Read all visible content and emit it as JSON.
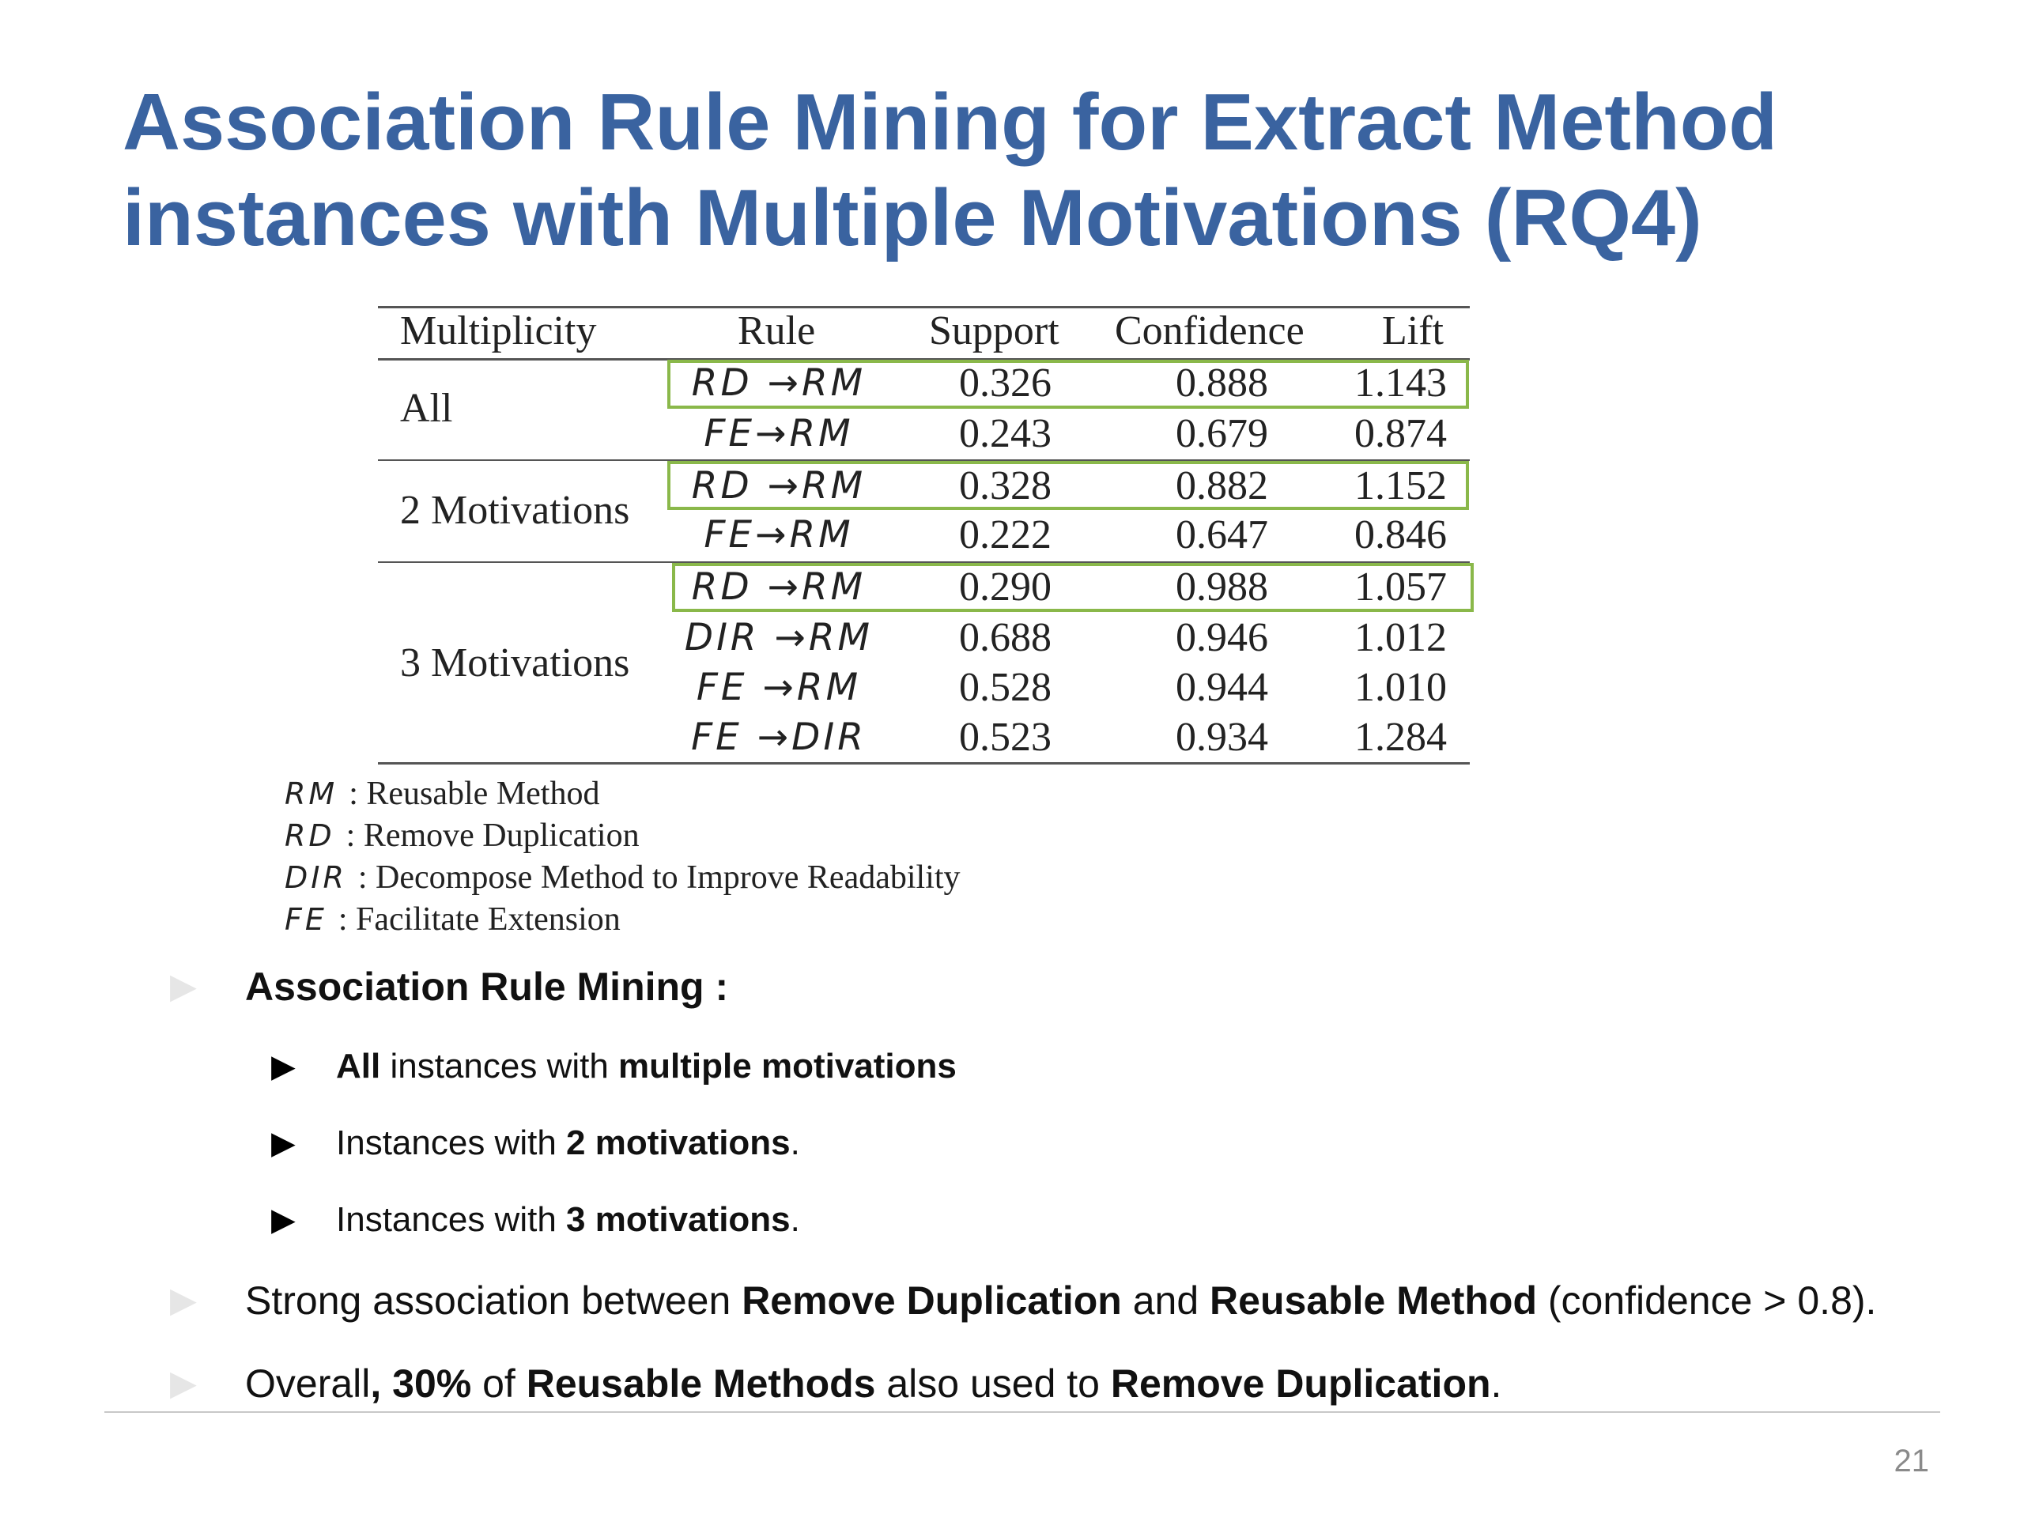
{
  "title": {
    "line1": "Association Rule Mining for Extract Method",
    "line2": "instances with Multiple Motivations (RQ4)"
  },
  "table": {
    "headers": [
      "Multiplicity",
      "Rule",
      "Support",
      "Confidence",
      "Lift"
    ],
    "groups": [
      {
        "label": "All",
        "rows": [
          {
            "rule": "RD →RM",
            "support": "0.326",
            "confidence": "0.888",
            "lift": "1.143",
            "highlighted": true
          },
          {
            "rule": "FE→RM",
            "support": "0.243",
            "confidence": "0.679",
            "lift": "0.874",
            "highlighted": false
          }
        ]
      },
      {
        "label": "2 Motivations",
        "rows": [
          {
            "rule": "RD →RM",
            "support": "0.328",
            "confidence": "0.882",
            "lift": "1.152",
            "highlighted": true
          },
          {
            "rule": "FE→RM",
            "support": "0.222",
            "confidence": "0.647",
            "lift": "0.846",
            "highlighted": false
          }
        ]
      },
      {
        "label": "3 Motivations",
        "rows": [
          {
            "rule": "RD →RM",
            "support": "0.290",
            "confidence": "0.988",
            "lift": "1.057",
            "highlighted": true
          },
          {
            "rule": "DIR →RM",
            "support": "0.688",
            "confidence": "0.946",
            "lift": "1.012",
            "highlighted": false
          },
          {
            "rule": "FE →RM",
            "support": "0.528",
            "confidence": "0.944",
            "lift": "1.010",
            "highlighted": false
          },
          {
            "rule": "FE →DIR",
            "support": "0.523",
            "confidence": "0.934",
            "lift": "1.284",
            "highlighted": false
          }
        ]
      }
    ],
    "highlight_color": "#8ab84a"
  },
  "legend": [
    {
      "abbr": "RM",
      "text": ": Reusable Method"
    },
    {
      "abbr": "RD",
      "text": ": Remove Duplication"
    },
    {
      "abbr": "DIR",
      "text": ": Decompose Method to Improve Readability"
    },
    {
      "abbr": "FE",
      "text": ": Facilitate Extension"
    }
  ],
  "bullets": {
    "arm_heading": "Association Rule Mining :",
    "sub1": {
      "a": "All",
      "b": " instances with ",
      "c": "multiple motivations"
    },
    "sub2": {
      "a": "Instances with ",
      "b": "2 motivations",
      "c": "."
    },
    "sub3": {
      "a": "Instances with ",
      "b": "3 motivations",
      "c": "."
    },
    "strong": {
      "a": "Strong association between ",
      "b": "Remove Duplication",
      "c": " and ",
      "d": "Reusable Method",
      "e": " (confidence > 0.8)."
    },
    "overall": {
      "a": "Overall",
      "b": ", 30%",
      "c": " of ",
      "d": "Reusable Methods",
      "e": " also used to ",
      "f": "Remove Duplication",
      "g": "."
    },
    "marker_glyph": "▶"
  },
  "page_number": "21",
  "colors": {
    "title": "#3a63a0",
    "highlight_box": "#8ab84a"
  }
}
